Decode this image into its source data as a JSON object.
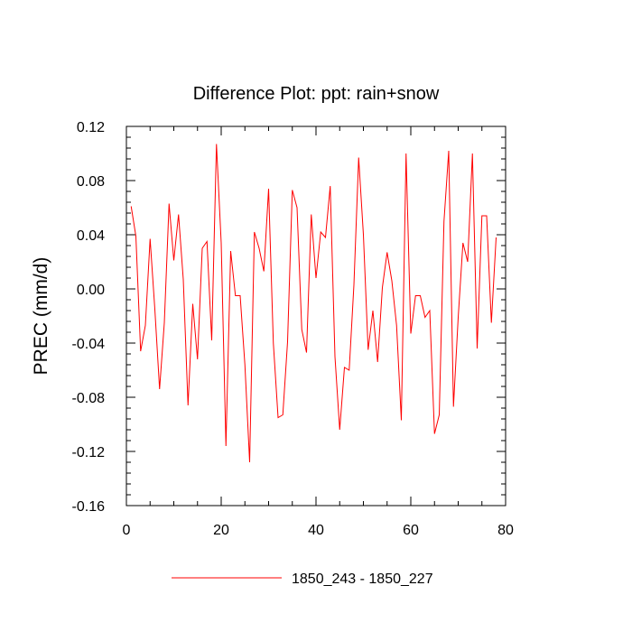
{
  "chart_data": {
    "type": "line",
    "title": "Difference Plot: ppt: rain+snow",
    "xlabel": "",
    "ylabel": "PREC  (mm/d)",
    "xlim": [
      0,
      80
    ],
    "ylim": [
      -0.16,
      0.12
    ],
    "x_ticks": [
      0,
      20,
      40,
      60,
      80
    ],
    "x_tick_labels": [
      "0",
      "20",
      "40",
      "60",
      "80"
    ],
    "y_ticks": [
      -0.16,
      -0.12,
      -0.08,
      -0.04,
      0.0,
      0.04,
      0.08,
      0.12
    ],
    "y_tick_labels": [
      "-0.16",
      "-0.12",
      "-0.08",
      "-0.04",
      "0.00",
      "0.04",
      "0.08",
      "0.12"
    ],
    "x_minor_step": 5,
    "y_minor_step": 0.008,
    "grid": false,
    "legend_position": "bottom-center",
    "series": [
      {
        "name": "1850_243 - 1850_227",
        "color": "#ff0000",
        "x": [
          1,
          2,
          3,
          4,
          5,
          6,
          7,
          8,
          9,
          10,
          11,
          12,
          13,
          14,
          15,
          16,
          17,
          18,
          19,
          20,
          21,
          22,
          23,
          24,
          25,
          26,
          27,
          28,
          29,
          30,
          31,
          32,
          33,
          34,
          35,
          36,
          37,
          38,
          39,
          40,
          41,
          42,
          43,
          44,
          45,
          46,
          47,
          48,
          49,
          50,
          51,
          52,
          53,
          54,
          55,
          56,
          57,
          58,
          59,
          60,
          61,
          62,
          63,
          64,
          65,
          66,
          67,
          68,
          69,
          70,
          71,
          72,
          73,
          74,
          75,
          76,
          77,
          78
        ],
        "values": [
          0.061,
          0.039,
          -0.046,
          -0.027,
          0.037,
          -0.015,
          -0.074,
          -0.025,
          0.063,
          0.021,
          0.055,
          0.007,
          -0.086,
          -0.011,
          -0.052,
          0.03,
          0.035,
          -0.038,
          0.107,
          0.034,
          -0.116,
          0.028,
          -0.005,
          -0.005,
          -0.056,
          -0.128,
          0.042,
          0.03,
          0.013,
          0.074,
          -0.04,
          -0.095,
          -0.093,
          -0.039,
          0.073,
          0.06,
          -0.03,
          -0.047,
          0.055,
          0.008,
          0.042,
          0.038,
          0.076,
          -0.05,
          -0.104,
          -0.058,
          -0.06,
          0.003,
          0.097,
          0.04,
          -0.045,
          -0.016,
          -0.054,
          0.001,
          0.027,
          0.006,
          -0.027,
          -0.097,
          0.1,
          -0.033,
          -0.005,
          -0.005,
          -0.021,
          -0.016,
          -0.107,
          -0.093,
          0.05,
          0.102,
          -0.087,
          -0.021,
          0.034,
          0.02,
          0.1,
          -0.044,
          0.054,
          0.054,
          -0.025,
          0.038
        ]
      }
    ]
  }
}
